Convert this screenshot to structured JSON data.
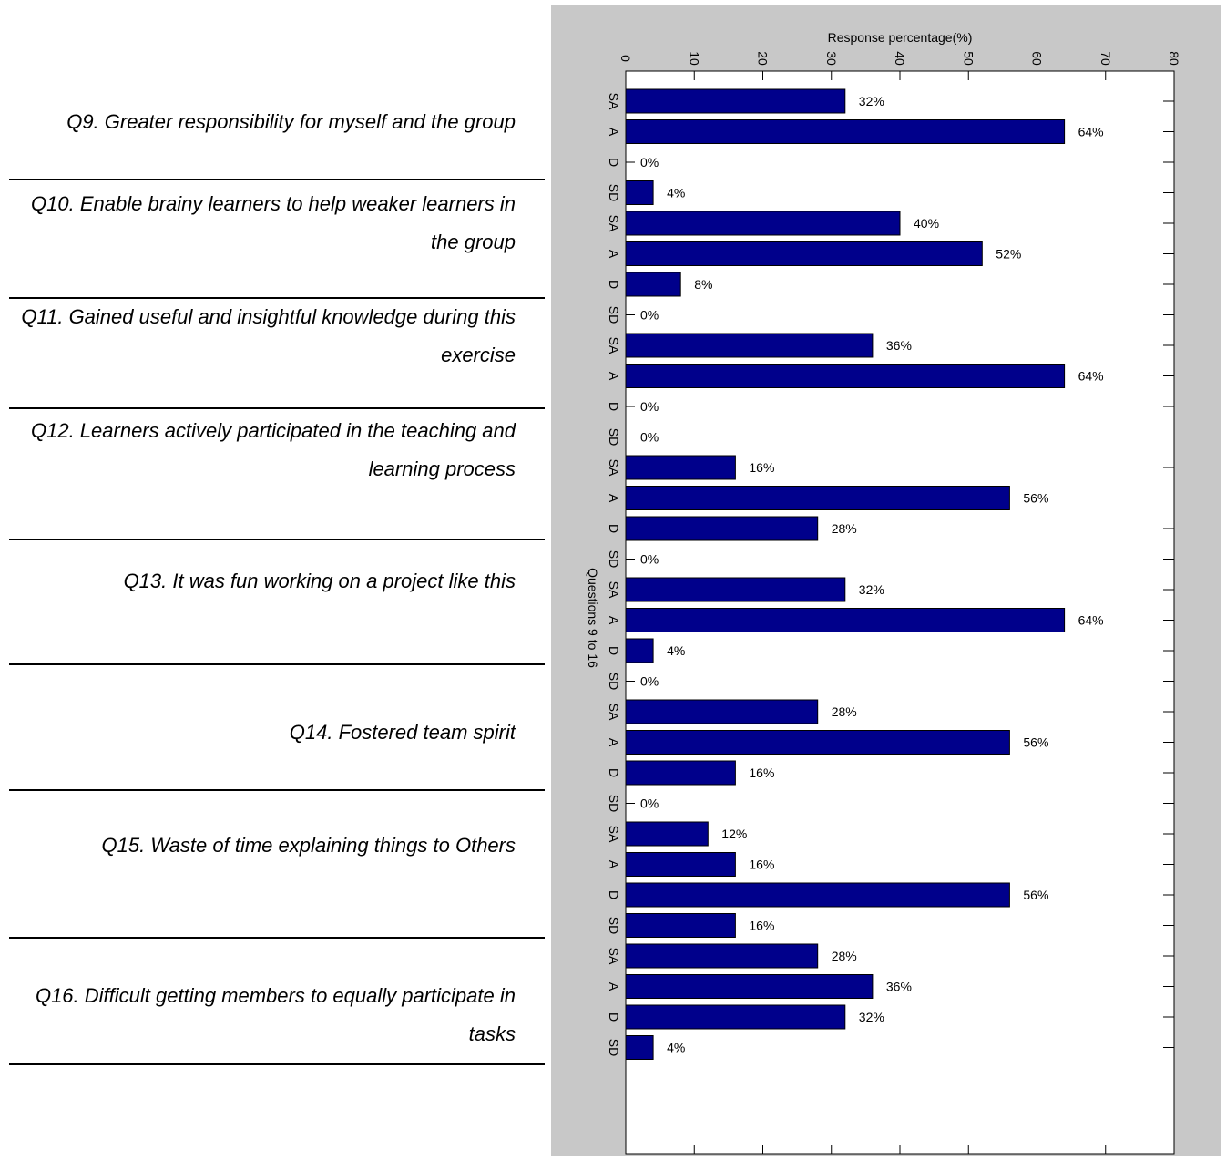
{
  "questions": [
    {
      "label": "Q9. Greater responsibility for myself and the group"
    },
    {
      "label": "Q10. Enable brainy learners to help weaker learners in the group"
    },
    {
      "label": "Q11. Gained useful and insightful knowledge during this exercise"
    },
    {
      "label": "Q12. Learners actively participated in the teaching and learning process"
    },
    {
      "label": "Q13. It was fun working on a project like this"
    },
    {
      "label": "Q14. Fostered team spirit"
    },
    {
      "label": "Q15. Waste of time explaining things to Others"
    },
    {
      "label": "Q16. Difficult getting members to equally participate in tasks"
    }
  ],
  "chart_data": {
    "type": "bar",
    "orientation": "horizontal",
    "xlabel": "Response percentage(%)",
    "ylabel": "Questions 9 to 16",
    "xlim": [
      0,
      80
    ],
    "xticks": [
      0,
      10,
      20,
      30,
      40,
      50,
      60,
      70,
      80
    ],
    "bar_color": "#00008b",
    "panel_color": "#c8c8c8",
    "categories": [
      "SA",
      "A",
      "D",
      "SD",
      "SA",
      "A",
      "D",
      "SD",
      "SA",
      "A",
      "D",
      "SD",
      "SA",
      "A",
      "D",
      "SD",
      "SA",
      "A",
      "D",
      "SD",
      "SA",
      "A",
      "D",
      "SD",
      "SA",
      "A",
      "D",
      "SD",
      "SA",
      "A",
      "D",
      "SD"
    ],
    "values": [
      32,
      64,
      0,
      4,
      40,
      52,
      8,
      0,
      36,
      64,
      0,
      0,
      16,
      56,
      28,
      0,
      32,
      64,
      4,
      0,
      28,
      56,
      16,
      0,
      12,
      16,
      56,
      16,
      28,
      36,
      32,
      4
    ],
    "data_labels": [
      "32%",
      "64%",
      "0%",
      "4%",
      "40%",
      "52%",
      "8%",
      "0%",
      "36%",
      "64%",
      "0%",
      "0%",
      "16%",
      "56%",
      "28%",
      "0%",
      "32%",
      "64%",
      "4%",
      "0%",
      "28%",
      "56%",
      "16%",
      "0%",
      "12%",
      "16%",
      "56%",
      "16%",
      "28%",
      "36%",
      "32%",
      "4%"
    ]
  }
}
